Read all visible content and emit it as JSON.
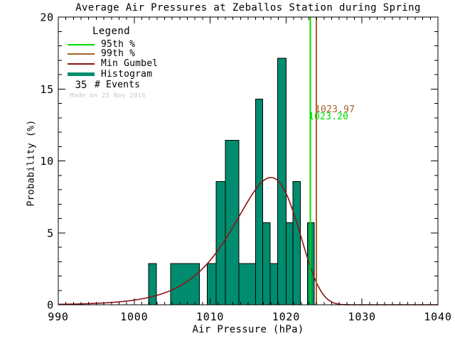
{
  "title": "Average Air Pressures at Zeballos Station during Spring",
  "watermark": "Made on 25 Nov 2016",
  "legend": {
    "heading": "Legend",
    "items": [
      {
        "label": "95th %",
        "color": "#00dc00",
        "type": "line"
      },
      {
        "label": "99th %",
        "color": "#a5652b",
        "type": "line"
      },
      {
        "label": "Min Gumbel",
        "color": "#8c1414",
        "type": "line"
      },
      {
        "label": "Histogram",
        "color": "#008c6e",
        "type": "bar"
      }
    ],
    "events_count": "35",
    "events_label": "# Events"
  },
  "annotations": {
    "p99_label": "1023.97",
    "p95_label": "1023.20"
  },
  "chart_data": {
    "type": "bar",
    "subtype": "histogram with fitted Gumbel-minimum curve and percentile lines",
    "title": "Average Air Pressures at Zeballos Station during Spring",
    "xlabel": "Air Pressure (hPa)",
    "ylabel": "Probability (%)",
    "xlim": [
      990,
      1040
    ],
    "ylim": [
      0,
      20
    ],
    "x_major_ticks": [
      990,
      1000,
      1010,
      1020,
      1030,
      1040
    ],
    "x_minor_step": 1,
    "y_major_ticks": [
      0,
      5,
      10,
      15,
      20
    ],
    "y_minor_step": 1,
    "grid": false,
    "legend_position": "upper-left",
    "n_events": 35,
    "percent_per_event": 2.857,
    "bars_format": "[x_start_hPa, x_end_hPa, probability_percent]",
    "bars": [
      [
        1001.9,
        1002.9,
        2.86
      ],
      [
        1004.8,
        1008.6,
        2.86
      ],
      [
        1009.6,
        1010.8,
        2.86
      ],
      [
        1010.8,
        1012.0,
        8.57
      ],
      [
        1012.0,
        1013.8,
        11.43
      ],
      [
        1013.8,
        1016.0,
        2.86
      ],
      [
        1016.0,
        1016.9,
        14.29
      ],
      [
        1016.9,
        1017.9,
        5.71
      ],
      [
        1017.9,
        1018.9,
        2.86
      ],
      [
        1018.9,
        1020.0,
        17.14
      ],
      [
        1020.0,
        1020.9,
        5.71
      ],
      [
        1020.9,
        1021.9,
        8.57
      ],
      [
        1022.8,
        1023.7,
        5.71
      ]
    ],
    "gumbel": {
      "mu": 1018.0,
      "beta": 4.2,
      "peak_percent": 8.85
    },
    "percentile_95": 1023.2,
    "percentile_99": 1023.97,
    "colors": {
      "histogram": "#008c6e",
      "gumbel": "#8c1414",
      "p95": "#00dc00",
      "p99": "#a5652b",
      "axis": "#000000",
      "watermark": "#c9c9c9"
    }
  }
}
